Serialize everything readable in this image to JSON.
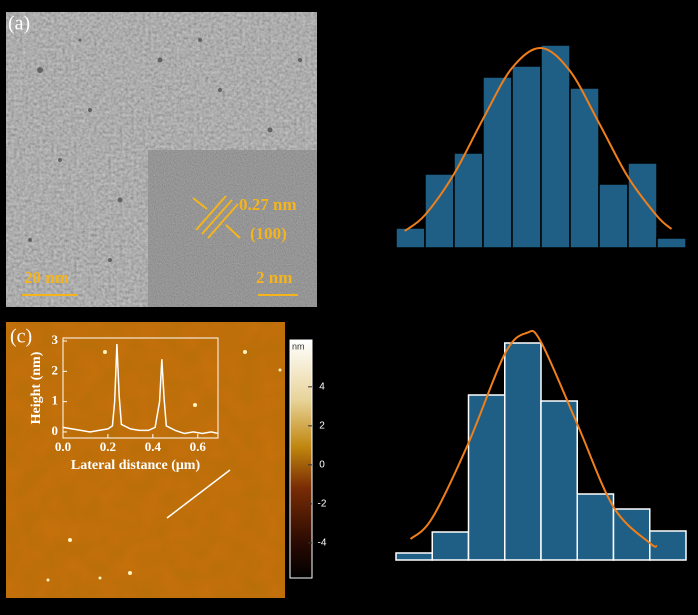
{
  "panels": {
    "a": {
      "label": "(a)",
      "scale_bar": "20 nm",
      "inset_scale_bar": "2 nm",
      "d_spacing": "0.27 nm",
      "plane": "(100)"
    },
    "c": {
      "label": "(c)"
    }
  },
  "chart_data": [
    {
      "type": "histogram",
      "bins": [
        0,
        1,
        2,
        3,
        4,
        5,
        6,
        7,
        8,
        9,
        10
      ],
      "values": [
        20,
        74,
        95,
        171,
        182,
        203,
        160,
        64,
        85,
        10
      ],
      "xlim": [
        0,
        10
      ],
      "ylim": [
        0,
        210
      ],
      "color": "#1f5f86",
      "edgecolor": "#000000",
      "fit": {
        "color": "#f07f1a",
        "x": [
          0.3,
          1,
          2,
          3,
          4,
          5,
          6,
          7,
          8,
          9,
          9.5
        ],
        "values": [
          17,
          33,
          74,
          129,
          180,
          200,
          177,
          125,
          71,
          32,
          19
        ]
      }
    },
    {
      "type": "histogram",
      "bins": [
        0,
        1,
        2,
        3,
        4,
        5,
        6,
        7,
        8
      ],
      "values": [
        7,
        28,
        165,
        217,
        159,
        66,
        51,
        29
      ],
      "xlim": [
        0,
        8
      ],
      "ylim": [
        0,
        230
      ],
      "color": "#1f5f86",
      "edgecolor": "#ffffff",
      "fit": {
        "color": "#f07f1a",
        "x": [
          0.4,
          1,
          2,
          3,
          3.6,
          4,
          5,
          6,
          7,
          7.2
        ],
        "values": [
          21,
          42,
          117,
          206,
          227,
          218,
          136,
          53,
          17,
          14
        ]
      }
    },
    {
      "type": "line",
      "xlabel": "Lateral distance (μm)",
      "ylabel": "Height (nm)",
      "color": "#ffffff",
      "x": [
        0,
        0.04,
        0.08,
        0.12,
        0.16,
        0.2,
        0.22,
        0.23,
        0.24,
        0.25,
        0.26,
        0.3,
        0.34,
        0.38,
        0.41,
        0.43,
        0.44,
        0.45,
        0.46,
        0.5,
        0.54,
        0.58,
        0.62,
        0.66,
        0.69
      ],
      "values": [
        0.15,
        0.1,
        0.05,
        0.0,
        0.05,
        0.1,
        0.2,
        1.0,
        2.9,
        1.2,
        0.25,
        0.1,
        0.05,
        0.05,
        0.15,
        1.0,
        2.4,
        1.1,
        0.2,
        0.05,
        -0.05,
        0.0,
        -0.05,
        0.0,
        -0.05
      ],
      "xlim": [
        0,
        0.69
      ],
      "ylim": [
        -0.2,
        3.1
      ],
      "xticks": [
        {
          "value": 0,
          "label": "0.0"
        },
        0.2,
        0.4,
        0.6
      ],
      "yticks": [
        0,
        1,
        2,
        3
      ]
    },
    {
      "type": "colorbar",
      "label": "nm",
      "ylim": [
        -5.8,
        6.4
      ],
      "yticks": [
        -4,
        -2,
        0,
        2,
        4
      ]
    }
  ]
}
